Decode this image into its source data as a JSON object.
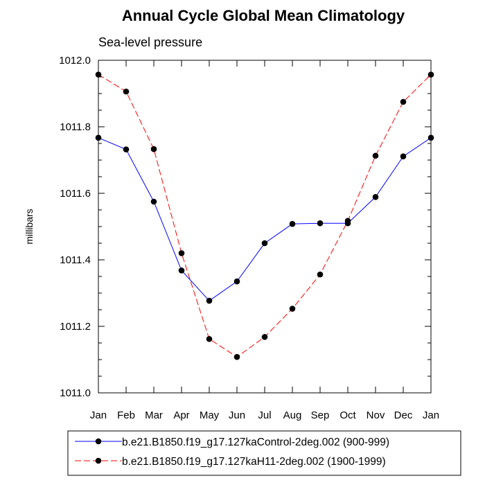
{
  "chart_data": {
    "type": "line",
    "title": "Annual Cycle Global Mean Climatology",
    "subtitle": "Sea-level pressure",
    "xlabel": "",
    "ylabel": "millibars",
    "categories": [
      "Jan",
      "Feb",
      "Mar",
      "Apr",
      "May",
      "Jun",
      "Jul",
      "Aug",
      "Sep",
      "Oct",
      "Nov",
      "Dec",
      "Jan"
    ],
    "ylim": [
      1011.0,
      1012.0
    ],
    "yticks": [
      1011.0,
      1011.2,
      1011.4,
      1011.6,
      1011.8,
      1012.0
    ],
    "ytick_labels": [
      "1011.0",
      "1011.2",
      "1011.4",
      "1011.6",
      "1011.8",
      "1012.0"
    ],
    "series": [
      {
        "name": "b.e21.B1850.f19_g17.127kaControl-2deg.002 (900-999)",
        "color": "#0000ff",
        "dash": "solid",
        "values": [
          1011.767,
          1011.732,
          1011.575,
          1011.368,
          1011.277,
          1011.335,
          1011.45,
          1011.508,
          1011.51,
          1011.51,
          1011.589,
          1011.711,
          1011.767
        ]
      },
      {
        "name": "b.e21.B1850.f19_g17.127kaH11-2deg.002 (1900-1999)",
        "color": "#ff0000",
        "dash": "dashed",
        "values": [
          1011.957,
          1011.906,
          1011.733,
          1011.42,
          1011.162,
          1011.108,
          1011.168,
          1011.253,
          1011.356,
          1011.517,
          1011.713,
          1011.875,
          1011.957
        ]
      }
    ],
    "legend": "bottom"
  }
}
